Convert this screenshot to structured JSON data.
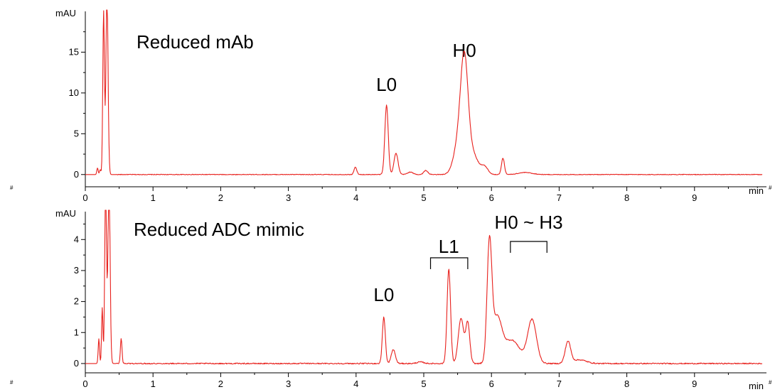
{
  "accent_color": "#e8201c",
  "chart_data": [
    {
      "type": "line",
      "title": "Reduced mAb",
      "y_unit": "mAU",
      "x_unit": "min",
      "xlim": [
        0,
        10
      ],
      "ylim": [
        -1.5,
        20
      ],
      "x_ticks": [
        0,
        1,
        2,
        3,
        4,
        5,
        6,
        7,
        8,
        9
      ],
      "y_ticks": [
        0,
        5,
        10,
        15
      ],
      "axis_end_marker": "#",
      "peaks": [
        {
          "label": "",
          "x": 0.18,
          "y": 0.8,
          "w": 0.01
        },
        {
          "label": "",
          "x": 0.22,
          "y": 0.6,
          "w": 0.01
        },
        {
          "label": "",
          "x": 0.27,
          "y": 20,
          "w": 0.012
        },
        {
          "label": "",
          "x": 0.32,
          "y": 22,
          "w": 0.016
        },
        {
          "label": "",
          "x": 3.99,
          "y": 0.9,
          "w": 0.02
        },
        {
          "label": "L0",
          "x": 4.45,
          "y": 8.5,
          "w": 0.025
        },
        {
          "label": "",
          "x": 4.59,
          "y": 2.6,
          "w": 0.03
        },
        {
          "label": "",
          "x": 4.8,
          "y": 0.3,
          "w": 0.04
        },
        {
          "label": "",
          "x": 5.03,
          "y": 0.5,
          "w": 0.03
        },
        {
          "label": "H0",
          "x": 5.6,
          "y": 12.8,
          "w": 0.055
        },
        {
          "label": "",
          "x": 5.51,
          "y": 3.5,
          "w": 0.07
        },
        {
          "label": "",
          "x": 5.72,
          "y": 2.5,
          "w": 0.08
        },
        {
          "label": "",
          "x": 5.9,
          "y": 0.9,
          "w": 0.05
        },
        {
          "label": "",
          "x": 6.17,
          "y": 2.0,
          "w": 0.022
        },
        {
          "label": "",
          "x": 6.5,
          "y": 0.25,
          "w": 0.1
        }
      ],
      "annotations": [
        {
          "text": "L0",
          "x": 4.45
        },
        {
          "text": "H0",
          "x": 5.6
        }
      ]
    },
    {
      "type": "line",
      "title": "Reduced ADC mimic",
      "y_unit": "mAU",
      "x_unit": "min",
      "xlim": [
        0,
        10
      ],
      "ylim": [
        -0.3,
        4.9
      ],
      "x_ticks": [
        0,
        1,
        2,
        3,
        4,
        5,
        6,
        7,
        8,
        9
      ],
      "y_ticks": [
        0,
        1,
        2,
        3,
        4
      ],
      "axis_end_marker": "#",
      "peaks": [
        {
          "label": "",
          "x": 0.2,
          "y": 0.8,
          "w": 0.01
        },
        {
          "label": "",
          "x": 0.25,
          "y": 1.8,
          "w": 0.01
        },
        {
          "label": "",
          "x": 0.3,
          "y": 6.0,
          "w": 0.013
        },
        {
          "label": "",
          "x": 0.35,
          "y": 6.0,
          "w": 0.016
        },
        {
          "label": "",
          "x": 0.53,
          "y": 0.8,
          "w": 0.012
        },
        {
          "label": "L0",
          "x": 4.41,
          "y": 1.5,
          "w": 0.022
        },
        {
          "label": "",
          "x": 4.55,
          "y": 0.45,
          "w": 0.03
        },
        {
          "label": "",
          "x": 4.95,
          "y": 0.05,
          "w": 0.05
        },
        {
          "label": "L1",
          "x": 5.37,
          "y": 3.05,
          "w": 0.026
        },
        {
          "label": "",
          "x": 5.55,
          "y": 1.45,
          "w": 0.04
        },
        {
          "label": "",
          "x": 5.65,
          "y": 1.3,
          "w": 0.03
        },
        {
          "label": "",
          "x": 5.97,
          "y": 3.7,
          "w": 0.035
        },
        {
          "label": "",
          "x": 6.08,
          "y": 1.4,
          "w": 0.07
        },
        {
          "label": "",
          "x": 6.3,
          "y": 0.75,
          "w": 0.12
        },
        {
          "label": "",
          "x": 6.6,
          "y": 1.4,
          "w": 0.065
        },
        {
          "label": "",
          "x": 7.13,
          "y": 0.7,
          "w": 0.04
        },
        {
          "label": "",
          "x": 7.3,
          "y": 0.12,
          "w": 0.1
        }
      ],
      "annotations": [
        {
          "text": "L0",
          "x": 4.41
        },
        {
          "text": "L1",
          "x": 5.37,
          "bracket": [
            5.1,
            5.65
          ]
        },
        {
          "text": "H0 ~ H3",
          "x": 6.55,
          "bracket": [
            6.28,
            6.82
          ]
        }
      ]
    }
  ]
}
